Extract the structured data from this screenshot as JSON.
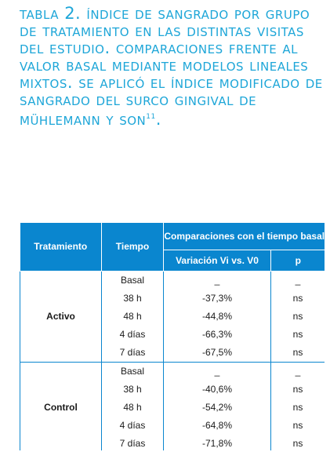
{
  "caption": {
    "text": "Tabla 2. Índice de sangrado por grupo de tratamiento en las distintas visitas del estudio. Comparaciones frente al valor basal mediante modelos lineales mixtos. Se aplicó el índice modificado de sangrado del surco gingival de Mühlemann y Son",
    "reference": "11",
    "end": "."
  },
  "table": {
    "headers": {
      "treatment": "Tratamiento",
      "time": "Tiempo",
      "comparisons": "Comparaciones con el tiempo basal",
      "variation": "Variación Vi vs. V0",
      "p": "p"
    },
    "groups": [
      {
        "name": "Activo",
        "rows": [
          {
            "time": "Basal",
            "variation": "_",
            "p": "_"
          },
          {
            "time": "38 h",
            "variation": "-37,3%",
            "p": "ns"
          },
          {
            "time": "48 h",
            "variation": "-44,8%",
            "p": "ns"
          },
          {
            "time": "4 días",
            "variation": "-66,3%",
            "p": "ns"
          },
          {
            "time": "7 días",
            "variation": "-67,5%",
            "p": "ns"
          }
        ]
      },
      {
        "name": "Control",
        "rows": [
          {
            "time": "Basal",
            "variation": "_",
            "p": "_"
          },
          {
            "time": "38 h",
            "variation": "-40,6%",
            "p": "ns"
          },
          {
            "time": "48 h",
            "variation": "-54,2%",
            "p": "ns"
          },
          {
            "time": "4 días",
            "variation": "-64,8%",
            "p": "ns"
          },
          {
            "time": "7 días",
            "variation": "-71,8%",
            "p": "ns"
          }
        ]
      }
    ]
  },
  "colors": {
    "caption": "#1ea6d8",
    "header_bg": "#0a86cf",
    "border": "#0a86cf"
  }
}
